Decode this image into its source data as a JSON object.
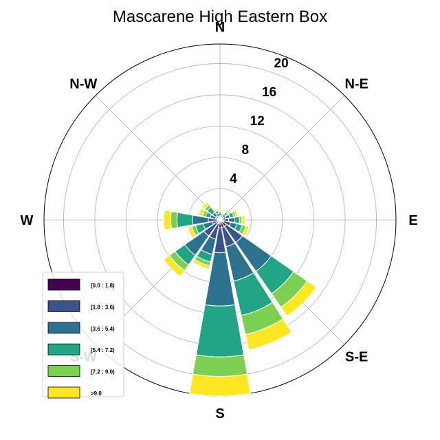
{
  "chart_data": {
    "type": "windrose",
    "title": "Mascarene High Eastern Box",
    "directions": [
      "N",
      "N-E",
      "E",
      "S-E",
      "S",
      "S-W",
      "W",
      "N-W"
    ],
    "radial_ticks": [
      "4",
      "8",
      "12",
      "16",
      "20"
    ],
    "radial_values": [
      4,
      8,
      12,
      16,
      20
    ],
    "rmax": 22.5,
    "bins": [
      "[0.0 : 1.8)",
      "[1.8 : 3.6)",
      "[3.6 : 5.4)",
      "[5.4 : 7.2)",
      "[7.2 : 9.0)",
      ">9.0"
    ],
    "colors": [
      "#440154",
      "#3b528b",
      "#2c728e",
      "#21a585",
      "#7ad151",
      "#fde725"
    ],
    "sectors": [
      {
        "direction": 0.0,
        "cum": [
          0.2,
          0.5,
          0.9,
          1.1,
          1.1,
          1.3
        ]
      },
      {
        "direction": 22.5,
        "cum": [
          0.2,
          0.4,
          0.6,
          0.8,
          0.8,
          1.0
        ]
      },
      {
        "direction": 45.0,
        "cum": [
          0.2,
          0.5,
          0.9,
          1.2,
          1.4,
          1.6
        ]
      },
      {
        "direction": 67.5,
        "cum": [
          0.3,
          0.8,
          1.3,
          1.8,
          2.1,
          2.4
        ]
      },
      {
        "direction": 90.0,
        "cum": [
          0.4,
          1.1,
          1.9,
          2.5,
          2.8,
          3.2
        ]
      },
      {
        "direction": 112.5,
        "cum": [
          0.5,
          1.4,
          2.2,
          2.9,
          3.4,
          3.8
        ]
      },
      {
        "direction": 135.0,
        "cum": [
          1.0,
          3.5,
          8.0,
          11.5,
          13.6,
          15.0
        ]
      },
      {
        "direction": 157.5,
        "cum": [
          1.0,
          3.5,
          8.0,
          12.5,
          15.0,
          17.0
        ]
      },
      {
        "direction": 180.0,
        "cum": [
          1.0,
          4.2,
          11.0,
          17.5,
          20.0,
          22.5
        ]
      },
      {
        "direction": 202.5,
        "cum": [
          0.5,
          2.5,
          4.5,
          5.5,
          6.0,
          6.4
        ]
      },
      {
        "direction": 225.0,
        "cum": [
          0.5,
          2.5,
          5.5,
          7.0,
          7.9,
          8.8
        ]
      },
      {
        "direction": 247.5,
        "cum": [
          0.3,
          1.0,
          2.2,
          3.2,
          3.7,
          4.2
        ]
      },
      {
        "direction": 270.0,
        "cum": [
          0.3,
          1.5,
          3.5,
          5.5,
          6.3,
          7.2
        ]
      },
      {
        "direction": 292.5,
        "cum": [
          0.2,
          0.6,
          1.3,
          1.9,
          2.3,
          2.8
        ]
      },
      {
        "direction": 315.0,
        "cum": [
          0.2,
          0.6,
          1.2,
          2.0,
          2.4,
          2.8
        ]
      },
      {
        "direction": 337.5,
        "cum": [
          0.2,
          0.5,
          0.9,
          1.2,
          1.2,
          1.4
        ]
      }
    ],
    "grid": true,
    "legend_position": "lower-left"
  }
}
